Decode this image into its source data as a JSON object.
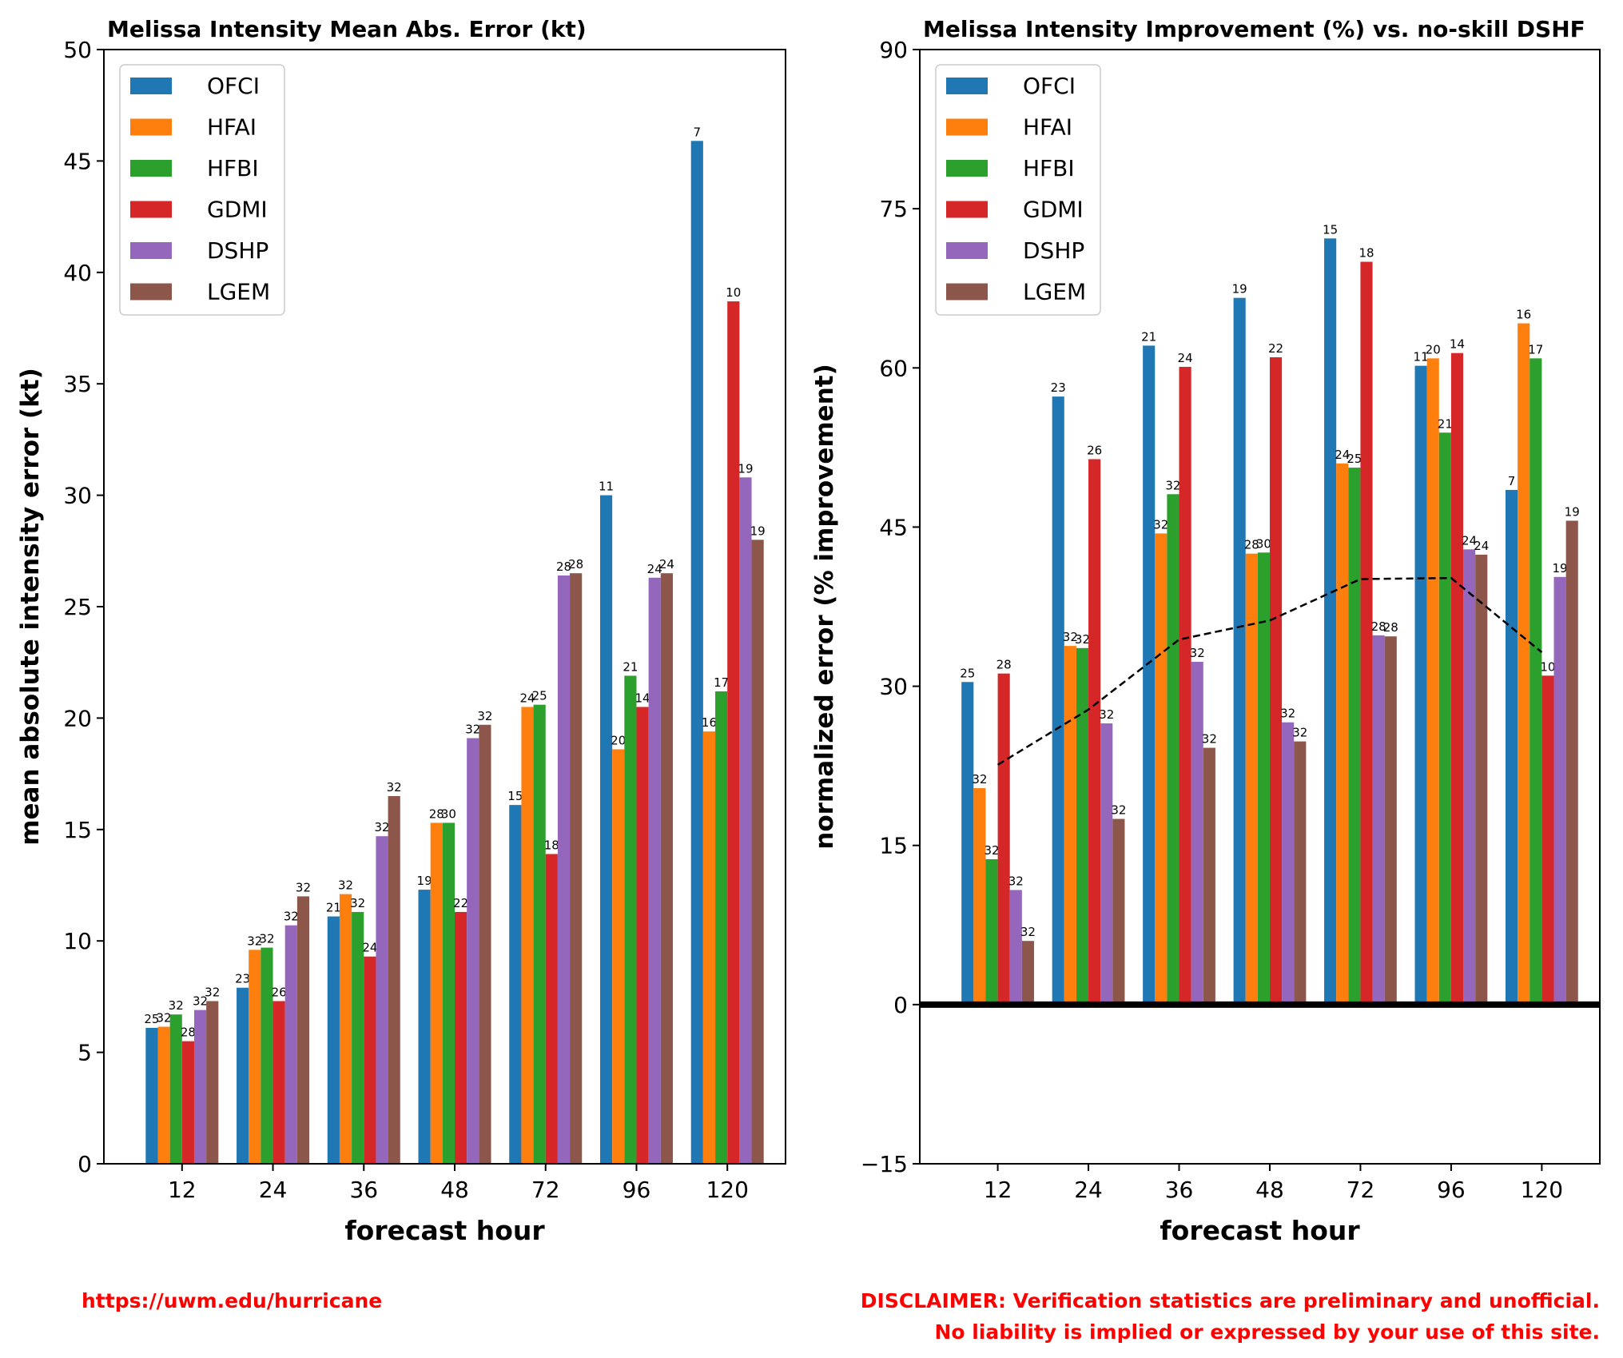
{
  "colors": {
    "OFCI": "#1f77b4",
    "HFAI": "#ff7f0e",
    "HFBI": "#2ca02c",
    "GDMI": "#d62728",
    "DSHP": "#9467bd",
    "LGEM": "#8c564b"
  },
  "chart_data": [
    {
      "type": "bar",
      "title": "Melissa Intensity Mean Abs. Error (kt)",
      "xlabel": "forecast hour",
      "ylabel": "mean absolute intensity error (kt)",
      "ylim": [
        0,
        50
      ],
      "yticks": [
        0,
        5,
        10,
        15,
        20,
        25,
        30,
        35,
        40,
        45,
        50
      ],
      "categories": [
        "12",
        "24",
        "36",
        "48",
        "72",
        "96",
        "120"
      ],
      "legend_position": "top-left",
      "series": [
        {
          "name": "OFCI",
          "values": [
            6.1,
            7.9,
            11.1,
            12.3,
            16.1,
            30.0,
            45.9
          ],
          "counts": [
            25,
            23,
            21,
            19,
            15,
            11,
            7
          ]
        },
        {
          "name": "HFAI",
          "values": [
            6.15,
            9.6,
            12.1,
            15.3,
            20.5,
            18.6,
            19.4
          ],
          "counts": [
            32,
            32,
            32,
            28,
            24,
            20,
            16
          ]
        },
        {
          "name": "HFBI",
          "values": [
            6.7,
            9.7,
            11.3,
            15.3,
            20.6,
            21.9,
            21.2
          ],
          "counts": [
            32,
            32,
            32,
            30,
            25,
            21,
            17
          ]
        },
        {
          "name": "GDMI",
          "values": [
            5.5,
            7.3,
            9.3,
            11.3,
            13.9,
            20.5,
            38.7
          ],
          "counts": [
            28,
            26,
            24,
            22,
            18,
            14,
            10
          ]
        },
        {
          "name": "DSHP",
          "values": [
            6.9,
            10.7,
            14.7,
            19.1,
            26.4,
            26.3,
            30.8
          ],
          "counts": [
            32,
            32,
            32,
            32,
            28,
            24,
            19
          ]
        },
        {
          "name": "LGEM",
          "values": [
            7.3,
            12.0,
            16.5,
            19.7,
            26.5,
            26.5,
            28.0
          ],
          "counts": [
            32,
            32,
            32,
            32,
            28,
            24,
            19
          ]
        }
      ]
    },
    {
      "type": "bar",
      "title": "Melissa Intensity Improvement (%) vs. no-skill DSHF",
      "xlabel": "forecast hour",
      "ylabel": "normalized error (% improvement)",
      "ylim": [
        -15,
        90
      ],
      "yticks": [
        -15,
        0,
        15,
        30,
        45,
        60,
        75,
        90
      ],
      "ytick_labels": [
        "−15",
        "0",
        "15",
        "30",
        "45",
        "60",
        "75",
        "90"
      ],
      "categories": [
        "12",
        "24",
        "36",
        "48",
        "72",
        "96",
        "120"
      ],
      "legend_position": "top-left",
      "series": [
        {
          "name": "OFCI",
          "values": [
            30.4,
            57.3,
            62.1,
            66.6,
            72.2,
            60.2,
            48.5
          ],
          "counts": [
            25,
            23,
            21,
            19,
            15,
            11,
            7
          ]
        },
        {
          "name": "HFAI",
          "values": [
            20.4,
            33.8,
            44.4,
            42.5,
            51.0,
            60.9,
            64.2
          ],
          "counts": [
            32,
            32,
            32,
            28,
            24,
            20,
            16
          ]
        },
        {
          "name": "HFBI",
          "values": [
            13.7,
            33.6,
            48.1,
            42.6,
            50.6,
            53.9,
            60.9
          ],
          "counts": [
            32,
            32,
            32,
            30,
            25,
            21,
            17
          ]
        },
        {
          "name": "GDMI",
          "values": [
            31.2,
            51.4,
            60.1,
            61.0,
            70.0,
            61.4,
            31.0
          ],
          "counts": [
            28,
            26,
            24,
            22,
            18,
            14,
            10
          ]
        },
        {
          "name": "DSHP",
          "values": [
            10.8,
            26.5,
            32.3,
            26.6,
            34.8,
            42.9,
            40.3
          ],
          "counts": [
            32,
            32,
            32,
            32,
            28,
            24,
            19
          ]
        },
        {
          "name": "LGEM",
          "values": [
            6.0,
            17.5,
            24.2,
            24.8,
            34.7,
            42.4,
            45.6
          ],
          "counts": [
            32,
            32,
            32,
            32,
            28,
            24,
            19
          ]
        }
      ],
      "dashed_line": {
        "values": [
          22.6,
          27.8,
          34.4,
          36.2,
          40.1,
          40.2,
          33.2
        ]
      }
    }
  ],
  "footer": {
    "url": "https://uwm.edu/hurricane",
    "disclaimer_line1": "DISCLAIMER: Verification statistics are preliminary and unofficial.",
    "disclaimer_line2": "No liability is implied or expressed by your use of this site."
  }
}
